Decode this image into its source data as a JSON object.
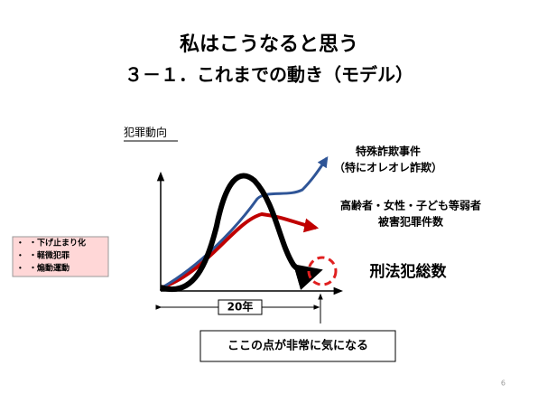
{
  "header": {
    "title": "私はこうなると思う",
    "subtitle": "３－１．これまでの動き（モデル）"
  },
  "diagram": {
    "label": "犯罪動向",
    "annotations": [
      "特殊詐欺事件",
      "（特にオレオレ詐欺）",
      "高齢者・女性・子ども等弱者",
      "被害犯罪件数",
      "刑法犯総数"
    ],
    "period": "20年",
    "note": "ここの点が非常に気になる"
  },
  "side_list": [
    "・下げ止まり化",
    "・軽微犯罪",
    "・煽動運動"
  ],
  "page_number": "6"
}
